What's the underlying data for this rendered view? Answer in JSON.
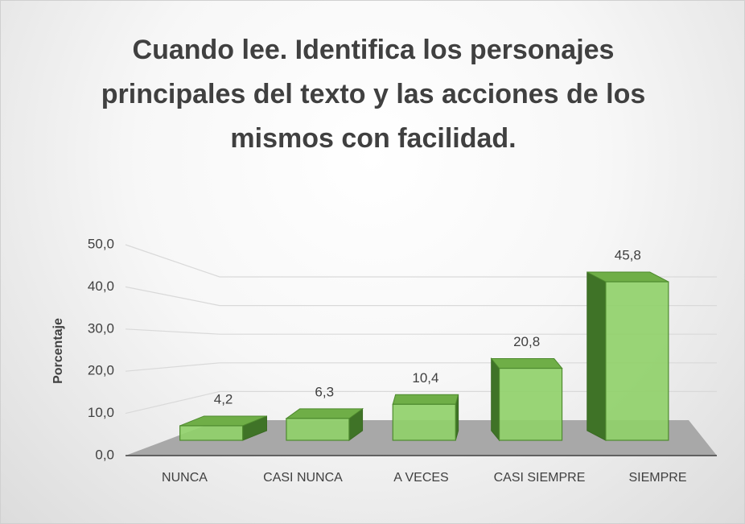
{
  "chart_data": {
    "type": "bar3d",
    "title": "Cuando lee. Identifica los personajes principales del  texto y las acciones de los mismos con facilidad.",
    "y_label": "Porcentaje",
    "categories": [
      "NUNCA",
      "CASI NUNCA",
      "A VECES",
      "CASI SIEMPRE",
      "SIEMPRE"
    ],
    "values": [
      4.2,
      6.3,
      10.4,
      20.8,
      45.8
    ],
    "value_labels": [
      "4,2",
      "6,3",
      "10,4",
      "20,8",
      "45,8"
    ],
    "color": "#8fd068",
    "ylim": [
      0,
      50
    ],
    "yticks": [
      {
        "value": 0,
        "label": "0,0"
      },
      {
        "value": 10,
        "label": "10,0"
      },
      {
        "value": 20,
        "label": "20,0"
      },
      {
        "value": 30,
        "label": "30,0"
      },
      {
        "value": 40,
        "label": "40,0"
      },
      {
        "value": 50,
        "label": "50,0"
      }
    ],
    "grid": true
  }
}
